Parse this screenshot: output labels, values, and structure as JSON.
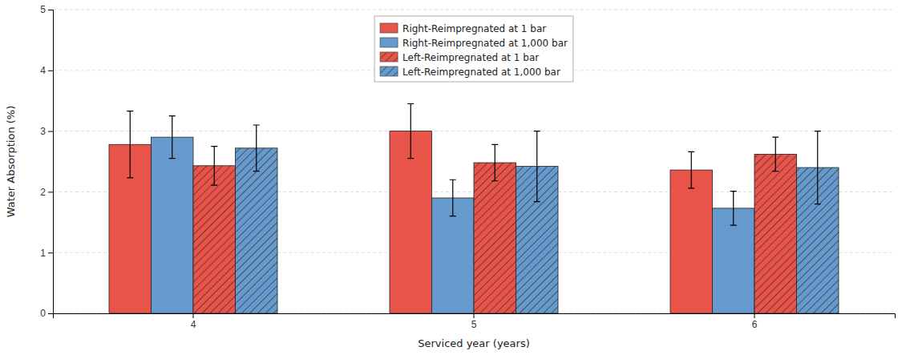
{
  "chart_data": {
    "type": "bar",
    "categories": [
      "4",
      "5",
      "6"
    ],
    "series": [
      {
        "name": "Right-Reimpregnated at 1 bar",
        "color": "#E8534A",
        "values": [
          2.78,
          3.0,
          2.36
        ],
        "errors": [
          0.55,
          0.45,
          0.3
        ]
      },
      {
        "name": "Right-Reimpregnated at 1,000 bar",
        "color": "#6699CC",
        "values": [
          2.9,
          1.9,
          1.73
        ],
        "errors": [
          0.35,
          0.3,
          0.28
        ]
      },
      {
        "name": "Left-Reimpregnated at 1 bar",
        "color": "#E8534A",
        "marker": "hatch",
        "values": [
          2.43,
          2.48,
          2.62
        ],
        "errors": [
          0.32,
          0.3,
          0.28
        ]
      },
      {
        "name": "Left-Reimpregnated at 1,000 bar",
        "color": "#6699CC",
        "marker": "hatch",
        "values": [
          2.72,
          2.42,
          2.4
        ],
        "errors": [
          0.38,
          0.58,
          0.6
        ]
      }
    ],
    "xlabel": "Serviced year (years)",
    "ylabel": "Water Absorption (%)",
    "ylim": [
      0,
      5
    ],
    "yticks": [
      0,
      1,
      2,
      3,
      4,
      5
    ],
    "grid": true,
    "legend": "top"
  }
}
